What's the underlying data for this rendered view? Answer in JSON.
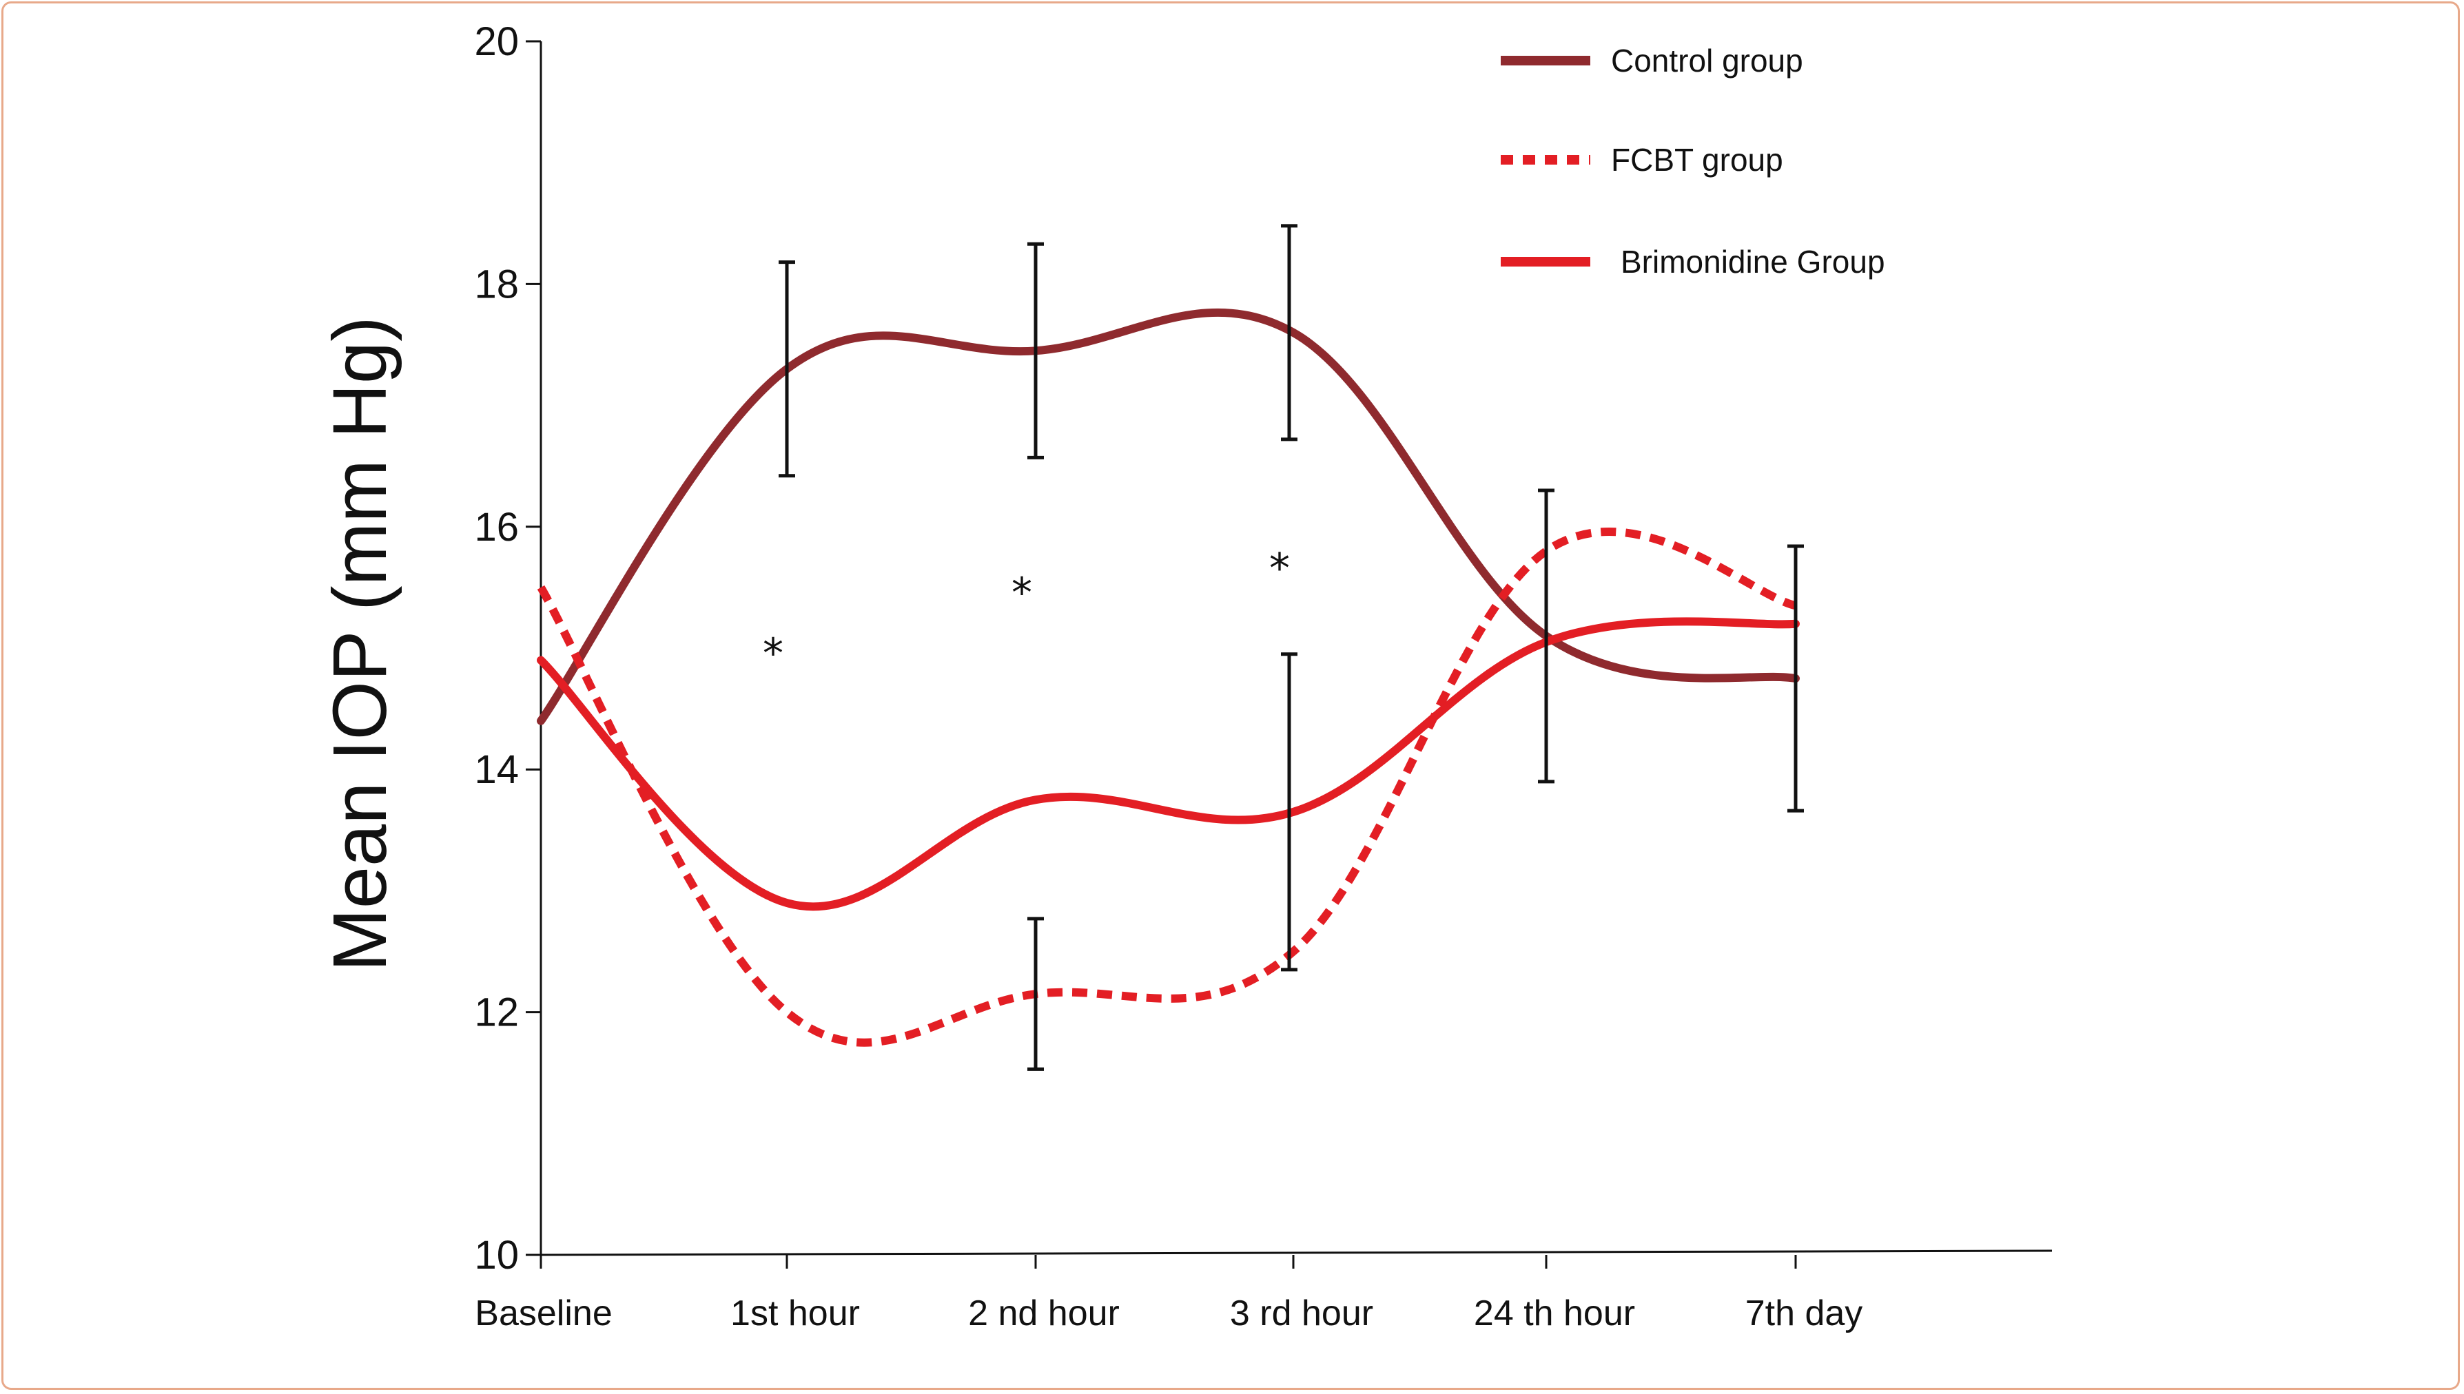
{
  "chart_data": {
    "type": "line",
    "ylabel": "Mean IOP (mm Hg)",
    "xlabel": "",
    "ylim": [
      10,
      20
    ],
    "yticks": [
      10,
      12,
      14,
      16,
      18,
      20
    ],
    "grid": false,
    "legend_position": "top-right",
    "categories": [
      "Baseline",
      "1st hour",
      "2 nd hour",
      "3 rd hour",
      "24 th hour",
      "7th day"
    ],
    "series": [
      {
        "name": "Control group",
        "style": "solid",
        "color": "#8f2a2e",
        "values": [
          14.4,
          17.3,
          17.45,
          17.6,
          15.1,
          14.75
        ],
        "error": [
          null,
          0.88,
          0.88,
          0.88,
          1.2,
          1.09
        ]
      },
      {
        "name": "FCBT group",
        "style": "dashed",
        "color": "#e31e24",
        "values": [
          15.5,
          12.0,
          12.15,
          12.5,
          15.8,
          15.35
        ],
        "error": [
          null,
          null,
          0.62,
          null,
          null,
          null
        ]
      },
      {
        "name": "Brimonidine Group",
        "style": "solid",
        "color": "#e31e24",
        "values": [
          14.9,
          12.9,
          13.75,
          13.65,
          15.05,
          15.2
        ],
        "error": [
          null,
          null,
          null,
          1.3,
          null,
          null
        ]
      }
    ],
    "annotations": [
      {
        "text": "*",
        "category": "1st hour",
        "y": 15.0
      },
      {
        "text": "*",
        "category": "2 nd hour",
        "y": 15.5
      },
      {
        "text": "*",
        "category": "3 rd hour",
        "y": 15.7
      }
    ]
  }
}
